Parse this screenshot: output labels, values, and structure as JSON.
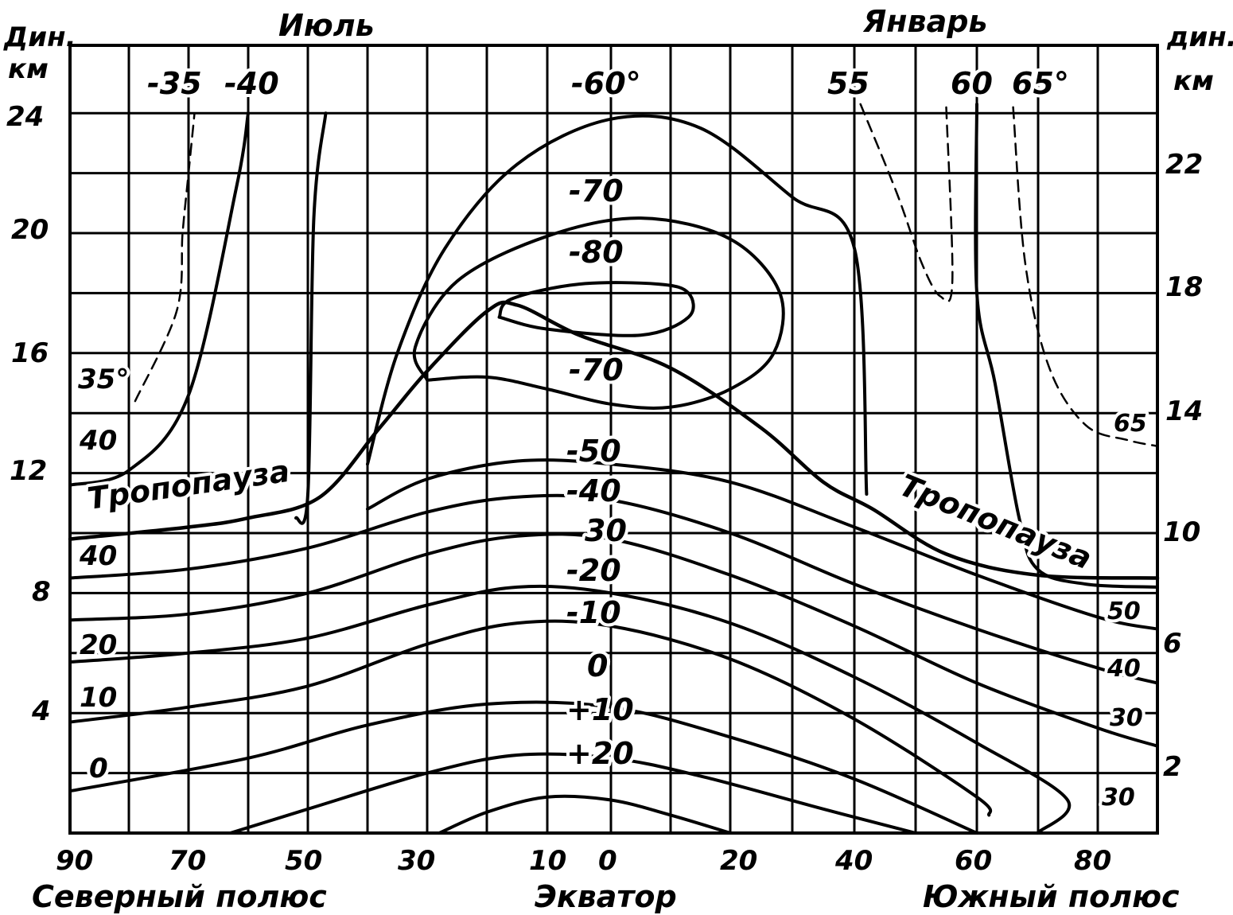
{
  "chart_data": {
    "type": "line",
    "title_left": "Июль",
    "title_right": "Январь",
    "ylabel_left": [
      "Дин.",
      "км"
    ],
    "ylabel_right": [
      "дин.",
      "км"
    ],
    "x_ticks": [
      "90",
      "70",
      "50",
      "30",
      "10",
      "0",
      "20",
      "40",
      "60",
      "80"
    ],
    "x_captions": {
      "north": "Северный полюс",
      "equator": "Экватор",
      "south": "Южный полюс"
    },
    "y_ticks_left": [
      "24",
      "20",
      "16",
      "12",
      "8",
      "4"
    ],
    "y_ticks_right": [
      "22",
      "18",
      "14",
      "10",
      "6",
      "2"
    ],
    "y_range_km": [
      0,
      25
    ],
    "lat_range": [
      "90N",
      "90S"
    ],
    "grid": true,
    "tropopause_label": "Тропопауза",
    "isotherm_labels_center": [
      "-60°",
      "-70",
      "-80",
      "-70",
      "-50",
      "-40",
      "30",
      "-20",
      "-10",
      "0",
      "+10",
      "+20"
    ],
    "top_labels_left": [
      "-35",
      "-40"
    ],
    "top_labels_right": [
      "55",
      "60",
      "65°"
    ],
    "left_edge_labels": [
      "35°",
      "40",
      "40",
      "20",
      "10",
      "0"
    ],
    "right_edge_labels": [
      "65",
      "50",
      "40",
      "30",
      "30"
    ],
    "series": [
      {
        "value": "+20",
        "points": [
          [
            28,
            0
          ],
          [
            20,
            0.7
          ],
          [
            10,
            1.2
          ],
          [
            0,
            1.1
          ],
          [
            -10,
            0.6
          ],
          [
            -20,
            0
          ]
        ]
      },
      {
        "value": "+10",
        "points": [
          [
            63,
            0
          ],
          [
            50,
            0.8
          ],
          [
            30,
            2
          ],
          [
            15,
            2.6
          ],
          [
            0,
            2.5
          ],
          [
            -15,
            1.9
          ],
          [
            -35,
            0.8
          ],
          [
            -50,
            0
          ]
        ]
      },
      {
        "value": "0",
        "points": [
          [
            90,
            1.4
          ],
          [
            60,
            2.5
          ],
          [
            40,
            3.6
          ],
          [
            20,
            4.3
          ],
          [
            0,
            4.2
          ],
          [
            -20,
            3.2
          ],
          [
            -40,
            1.8
          ],
          [
            -60,
            0
          ]
        ]
      },
      {
        "value": "-10",
        "points": [
          [
            90,
            3.7
          ],
          [
            70,
            4.2
          ],
          [
            50,
            4.9
          ],
          [
            30,
            6.3
          ],
          [
            15,
            7
          ],
          [
            0,
            6.9
          ],
          [
            -20,
            5.8
          ],
          [
            -40,
            3.8
          ],
          [
            -60,
            1.2
          ],
          [
            -62,
            0.6
          ]
        ]
      },
      {
        "value": "-20",
        "points": [
          [
            90,
            5.7
          ],
          [
            70,
            6
          ],
          [
            50,
            6.5
          ],
          [
            30,
            7.6
          ],
          [
            15,
            8.2
          ],
          [
            0,
            8
          ],
          [
            -20,
            7
          ],
          [
            -40,
            5.2
          ],
          [
            -60,
            3
          ],
          [
            -75,
            1.1
          ],
          [
            -70,
            0
          ]
        ]
      },
      {
        "value": "-30",
        "points": [
          [
            90,
            7.1
          ],
          [
            70,
            7.3
          ],
          [
            50,
            8
          ],
          [
            30,
            9.3
          ],
          [
            15,
            9.9
          ],
          [
            0,
            9.8
          ],
          [
            -20,
            8.6
          ],
          [
            -40,
            6.9
          ],
          [
            -60,
            5
          ],
          [
            -80,
            3.5
          ],
          [
            -90,
            2.9
          ]
        ]
      },
      {
        "value": "-40",
        "points": [
          [
            90,
            8.5
          ],
          [
            70,
            8.8
          ],
          [
            50,
            9.5
          ],
          [
            30,
            10.7
          ],
          [
            15,
            11.2
          ],
          [
            0,
            11.1
          ],
          [
            -20,
            10
          ],
          [
            -40,
            8.3
          ],
          [
            -60,
            6.8
          ],
          [
            -80,
            5.5
          ],
          [
            -90,
            5
          ]
        ]
      },
      {
        "value": "-50",
        "points": [
          [
            40,
            10.8
          ],
          [
            30,
            11.8
          ],
          [
            15,
            12.4
          ],
          [
            0,
            12.3
          ],
          [
            -20,
            11.7
          ],
          [
            -40,
            10.2
          ],
          [
            -60,
            8.6
          ],
          [
            -80,
            7.2
          ],
          [
            -90,
            6.8
          ]
        ]
      },
      {
        "value": "-70 inner",
        "points": [
          [
            30,
            15.1
          ],
          [
            20,
            15.2
          ],
          [
            10,
            14.8
          ],
          [
            0,
            14.3
          ],
          [
            -10,
            14.2
          ],
          [
            -20,
            14.8
          ],
          [
            -27,
            16
          ],
          [
            -28,
            18
          ],
          [
            -20,
            19.8
          ],
          [
            -5,
            20.5
          ],
          [
            10,
            19.9
          ],
          [
            25,
            18.4
          ],
          [
            32,
            16.2
          ],
          [
            30,
            15.1
          ]
        ]
      },
      {
        "value": "-80",
        "points": [
          [
            18,
            17.2
          ],
          [
            10,
            16.8
          ],
          [
            -5,
            16.6
          ],
          [
            -13,
            17.2
          ],
          [
            -13,
            18
          ],
          [
            -8,
            18.3
          ],
          [
            5,
            18.3
          ],
          [
            16,
            17.8
          ],
          [
            18,
            17.2
          ]
        ]
      },
      {
        "value": "-60°",
        "points": [
          [
            40,
            12.3
          ],
          [
            35,
            16
          ],
          [
            27,
            19.5
          ],
          [
            15,
            22.3
          ],
          [
            0,
            23.8
          ],
          [
            -15,
            23.5
          ],
          [
            -30,
            21.2
          ],
          [
            -40,
            19.5
          ],
          [
            -42,
            11.3
          ]
        ]
      },
      {
        "value": "tropopause",
        "points": [
          [
            90,
            9.8
          ],
          [
            70,
            10.2
          ],
          [
            60,
            10.5
          ],
          [
            48,
            11.2
          ],
          [
            38,
            13.5
          ],
          [
            30,
            15.4
          ],
          [
            20,
            17.4
          ],
          [
            15,
            17.6
          ],
          [
            5,
            16.6
          ],
          [
            -10,
            15.5
          ],
          [
            -25,
            13.5
          ],
          [
            -35,
            11.7
          ],
          [
            -43,
            10.8
          ],
          [
            -55,
            9.3
          ],
          [
            -70,
            8.6
          ],
          [
            -90,
            8.5
          ]
        ]
      },
      {
        "value": "-40 (July high)",
        "points": [
          [
            90,
            11.6
          ],
          [
            80,
            12.1
          ],
          [
            70,
            14.6
          ],
          [
            62,
            21.5
          ],
          [
            60,
            24
          ]
        ]
      },
      {
        "value": "-40 (July 50N)",
        "points": [
          [
            52,
            10.5
          ],
          [
            50,
            11.3
          ],
          [
            49,
            20.5
          ],
          [
            47,
            24
          ]
        ]
      },
      {
        "value": "-35 dashed",
        "points": [
          [
            79,
            14.4
          ],
          [
            72,
            17.4
          ],
          [
            71,
            20
          ],
          [
            70,
            22
          ],
          [
            69,
            24
          ]
        ],
        "dashed": true
      },
      {
        "value": "55 dashed",
        "points": [
          [
            -41,
            24.3
          ],
          [
            -47,
            21.3
          ],
          [
            -51,
            19
          ],
          [
            -54,
            17.9
          ],
          [
            -56,
            18.4
          ],
          [
            -55,
            24.2
          ]
        ],
        "dashed": true
      },
      {
        "value": "60",
        "points": [
          [
            -60,
            24.3
          ],
          [
            -60,
            18
          ],
          [
            -63,
            15
          ],
          [
            -67,
            10.5
          ],
          [
            -70,
            8.8
          ],
          [
            -78,
            8.3
          ],
          [
            -90,
            8.2
          ]
        ]
      },
      {
        "value": "65 dashed",
        "points": [
          [
            -66,
            24.2
          ],
          [
            -68,
            19
          ],
          [
            -72,
            15.5
          ],
          [
            -78,
            13.6
          ],
          [
            -85,
            13.1
          ],
          [
            -90,
            12.9
          ]
        ],
        "dashed": true
      }
    ]
  }
}
